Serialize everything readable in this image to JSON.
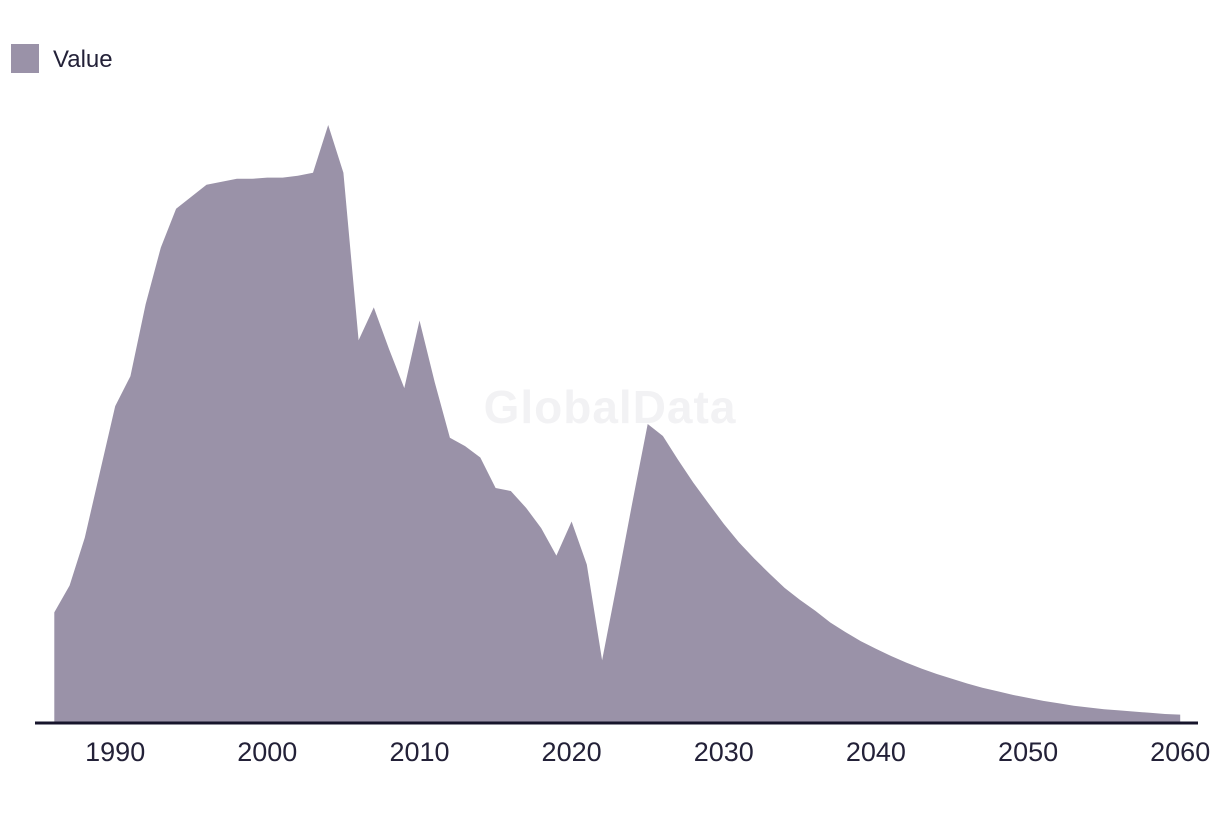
{
  "legend": {
    "items": [
      {
        "label": "Value",
        "color": "#9a92a8"
      }
    ]
  },
  "watermark": {
    "text": "GlobalData"
  },
  "colors": {
    "area_fill": "#9a92a8",
    "axis_line": "#17152c",
    "tick_text": "#232138",
    "watermark_text": "#f2f2f4",
    "background": "#ffffff"
  },
  "chart_data": {
    "type": "area",
    "title": "",
    "xlabel": "",
    "ylabel": "",
    "legend_position": "top-left",
    "grid": false,
    "y_axis_visible": false,
    "watermark": "GlobalData",
    "x_ticks": [
      1990,
      2000,
      2010,
      2020,
      2030,
      2040,
      2050,
      2060
    ],
    "xlim": [
      1986,
      2060
    ],
    "ylim": [
      0,
      105
    ],
    "x": [
      1986,
      1987,
      1988,
      1989,
      1990,
      1991,
      1992,
      1993,
      1994,
      1995,
      1996,
      1997,
      1998,
      1999,
      2000,
      2001,
      2002,
      2003,
      2004,
      2005,
      2006,
      2007,
      2008,
      2009,
      2010,
      2011,
      2012,
      2013,
      2014,
      2015,
      2016,
      2017,
      2018,
      2019,
      2020,
      2021,
      2022,
      2023,
      2024,
      2025,
      2026,
      2027,
      2028,
      2029,
      2030,
      2031,
      2032,
      2033,
      2034,
      2035,
      2036,
      2037,
      2038,
      2039,
      2040,
      2041,
      2042,
      2043,
      2044,
      2045,
      2046,
      2047,
      2048,
      2049,
      2050,
      2051,
      2052,
      2053,
      2054,
      2055,
      2056,
      2057,
      2058,
      2059,
      2060
    ],
    "series": [
      {
        "name": "Value",
        "values": [
          18.5,
          23.0,
          31.0,
          42.0,
          53.0,
          58.0,
          70.0,
          79.5,
          86.0,
          88.0,
          90.0,
          90.5,
          91.0,
          91.0,
          91.2,
          91.2,
          91.5,
          92.0,
          100.0,
          92.0,
          64.0,
          69.5,
          62.5,
          56.0,
          67.3,
          57.0,
          47.7,
          46.3,
          44.4,
          39.3,
          38.8,
          36.0,
          32.6,
          28.0,
          33.7,
          26.5,
          10.5,
          23.6,
          37.0,
          50.0,
          48.0,
          44.0,
          40.2,
          36.7,
          33.3,
          30.2,
          27.5,
          25.0,
          22.6,
          20.6,
          18.8,
          16.8,
          15.2,
          13.7,
          12.4,
          11.2,
          10.1,
          9.1,
          8.2,
          7.4,
          6.6,
          5.9,
          5.3,
          4.7,
          4.2,
          3.7,
          3.3,
          2.9,
          2.6,
          2.3,
          2.1,
          1.9,
          1.7,
          1.5,
          1.4
        ]
      }
    ]
  }
}
